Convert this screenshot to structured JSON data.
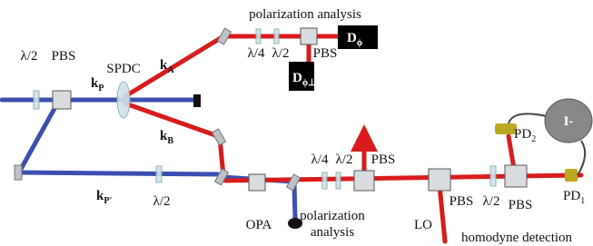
{
  "top_analysis": {
    "title": "polarization analysis",
    "qwp": "λ/4",
    "hwp": "λ/2",
    "pbs": "PBS",
    "d_phi": {
      "main": "D",
      "sub": "ϕ"
    },
    "d_phi_perp": {
      "main": "D",
      "sub": "ϕ⊥"
    }
  },
  "pump": {
    "hwp": "λ/2",
    "pbs": "PBS",
    "k_p": {
      "main": "k",
      "sub": "P"
    },
    "spdc": "SPDC",
    "k_p_prime": {
      "main": "k",
      "sub": "P'"
    },
    "hwp2": "λ/2"
  },
  "modes": {
    "k_a": {
      "main": "k",
      "sub": "A"
    },
    "k_b": {
      "main": "k",
      "sub": "B"
    }
  },
  "opa": "OPA",
  "bottom_analysis": {
    "lines": [
      "polarization",
      "analysis"
    ],
    "qwp": "λ/4",
    "hwp": "λ/2",
    "pbs": "PBS"
  },
  "homodyne": {
    "lo": "LO",
    "pbs1": "PBS",
    "hwp": "λ/2",
    "pbs2": "PBS",
    "title": "homodyne detection",
    "pd2": {
      "main": "PD",
      "sub": "2"
    },
    "pd1": {
      "main": "PD",
      "sub": "1"
    },
    "difference": "I-"
  }
}
